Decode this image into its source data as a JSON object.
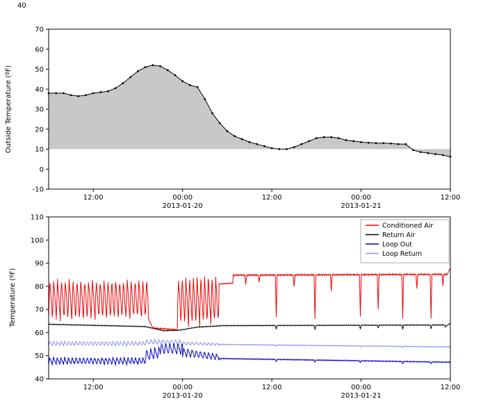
{
  "figure": {
    "background": "#ffffff",
    "stray_top_left_label": "40"
  },
  "chart_data": [
    {
      "name": "outside-temperature",
      "type": "area",
      "title": "",
      "xlabel": "",
      "ylabel": "Outside Temperature (ºF)",
      "ylim": [
        -10,
        70
      ],
      "yticks": [
        -10,
        0,
        10,
        20,
        30,
        40,
        50,
        60,
        70
      ],
      "xlim": [
        0,
        54
      ],
      "xticks": [
        {
          "pos": 6,
          "label": "12:00",
          "date": ""
        },
        {
          "pos": 18,
          "label": "00:00",
          "date": "2013-01-20"
        },
        {
          "pos": 30,
          "label": "12:00",
          "date": ""
        },
        {
          "pos": 42,
          "label": "00:00",
          "date": "2013-01-21"
        },
        {
          "pos": 54,
          "label": "12:00",
          "date": ""
        }
      ],
      "grid": false,
      "baseline": 10,
      "fill_color": "#c8c8c8",
      "line_color": "#000000",
      "marker": "dot",
      "x": [
        0,
        1,
        2,
        3,
        4,
        5,
        6,
        7,
        8,
        9,
        10,
        11,
        12,
        13,
        14,
        15,
        16,
        17,
        18,
        19,
        20,
        21,
        22,
        23,
        24,
        25,
        26,
        27,
        28,
        29,
        30,
        31,
        32,
        33,
        34,
        35,
        36,
        37,
        38,
        39,
        40,
        41,
        42,
        43,
        44,
        45,
        46,
        47,
        48,
        49,
        50,
        51,
        52,
        53,
        54
      ],
      "y": [
        38,
        38,
        38,
        37,
        36.5,
        37,
        38,
        38.5,
        39,
        40.5,
        43,
        46,
        49,
        51,
        52,
        51.5,
        49.5,
        47,
        44,
        42,
        41,
        35,
        28,
        23,
        19,
        16.5,
        15,
        13.5,
        12.5,
        11.5,
        10.5,
        10,
        10,
        11,
        12.5,
        14,
        15.5,
        16,
        16,
        15.5,
        14.5,
        14,
        13.5,
        13.2,
        13,
        13,
        12.8,
        12.5,
        12.5,
        9.5,
        8.5,
        8,
        7.5,
        7,
        6.2
      ]
    },
    {
      "name": "hvac-temperatures",
      "type": "line",
      "title": "",
      "xlabel": "",
      "ylabel": "Temperature (ºF)",
      "ylim": [
        40,
        110
      ],
      "yticks": [
        40,
        50,
        60,
        70,
        80,
        90,
        100,
        110
      ],
      "xlim": [
        0,
        54
      ],
      "xticks": [
        {
          "pos": 6,
          "label": "12:00",
          "date": ""
        },
        {
          "pos": 18,
          "label": "00:00",
          "date": "2013-01-20"
        },
        {
          "pos": 30,
          "label": "12:00",
          "date": ""
        },
        {
          "pos": 42,
          "label": "00:00",
          "date": "2013-01-21"
        },
        {
          "pos": 54,
          "label": "12:00",
          "date": ""
        }
      ],
      "grid": false,
      "legend": {
        "position": "top-right"
      },
      "series": [
        {
          "name": "Conditioned Air",
          "color": "#ee0000",
          "segments": [
            {
              "type": "osc",
              "t0": 0,
              "t1": 13.4,
              "period": 0.52,
              "lo": 66,
              "hi": 83,
              "noise": 1.2
            },
            {
              "type": "ramp",
              "t0": 13.4,
              "t1": 14.0,
              "v0": 66,
              "v1": 62,
              "noise": 0.3
            },
            {
              "type": "ramp",
              "t0": 14.0,
              "t1": 17.3,
              "v0": 62,
              "v1": 61.2,
              "noise": 0.4
            },
            {
              "type": "osc",
              "t0": 17.3,
              "t1": 22.9,
              "period": 0.5,
              "lo": 64,
              "hi": 84,
              "noise": 1.5
            },
            {
              "type": "ramp",
              "t0": 22.9,
              "t1": 24.8,
              "v0": 81,
              "v1": 81.4,
              "noise": 0.3
            },
            {
              "type": "spiky",
              "t0": 24.8,
              "t1": 53.6,
              "v0": 84.8,
              "v1": 85.2,
              "noise": 0.5,
              "spikes": [
                [
                  26.5,
                  4
                ],
                [
                  28.3,
                  3
                ],
                [
                  30.6,
                  18
                ],
                [
                  33,
                  5
                ],
                [
                  35.8,
                  19
                ],
                [
                  38,
                  7
                ],
                [
                  41.9,
                  18
                ],
                [
                  44.3,
                  15
                ],
                [
                  47.6,
                  19
                ],
                [
                  49.5,
                  6
                ],
                [
                  51.4,
                  19
                ],
                [
                  53,
                  5
                ]
              ]
            },
            {
              "type": "ramp",
              "t0": 53.6,
              "t1": 54,
              "v0": 85.2,
              "v1": 88,
              "noise": 0.2
            }
          ]
        },
        {
          "name": "Return Air",
          "color": "#000000",
          "segments": [
            {
              "type": "ramp",
              "t0": 0,
              "t1": 13,
              "v0": 63.6,
              "v1": 62.6,
              "noise": 0.25
            },
            {
              "type": "ramp",
              "t0": 13,
              "t1": 15.5,
              "v0": 62.6,
              "v1": 60.8,
              "noise": 0.2
            },
            {
              "type": "ramp",
              "t0": 15.5,
              "t1": 17.5,
              "v0": 60.8,
              "v1": 61.0,
              "noise": 0.2
            },
            {
              "type": "ramp",
              "t0": 17.5,
              "t1": 20,
              "v0": 61.0,
              "v1": 62.4,
              "noise": 0.2
            },
            {
              "type": "ramp",
              "t0": 20,
              "t1": 23,
              "v0": 62.4,
              "v1": 62.9,
              "noise": 0.25
            },
            {
              "type": "spiky",
              "t0": 23,
              "t1": 53.3,
              "v0": 63.0,
              "v1": 63.3,
              "noise": 0.25,
              "spikes": [
                [
                  30.6,
                  1.6
                ],
                [
                  35.8,
                  1.8
                ],
                [
                  41.9,
                  1.6
                ],
                [
                  44.3,
                  1.2
                ],
                [
                  47.6,
                  1.8
                ],
                [
                  51.4,
                  1.6
                ]
              ]
            },
            {
              "type": "ramp",
              "t0": 53.3,
              "t1": 54,
              "v0": 62.5,
              "v1": 64.0,
              "noise": 0.2
            }
          ]
        },
        {
          "name": "Loop Out",
          "color": "#0000cc",
          "segments": [
            {
              "type": "osc",
              "t0": 0,
              "t1": 13,
              "period": 0.5,
              "lo": 46.3,
              "hi": 49.2,
              "noise": 0.5
            },
            {
              "type": "osc",
              "t0": 13,
              "t1": 15,
              "period": 0.55,
              "lo": 47.5,
              "hi": 52.5,
              "lo2": 49,
              "hi2": 54,
              "noise": 0.5
            },
            {
              "type": "osc",
              "t0": 15,
              "t1": 18,
              "period": 0.55,
              "lo": 50.5,
              "hi": 55.5,
              "noise": 0.5
            },
            {
              "type": "osc",
              "t0": 18,
              "t1": 23,
              "period": 0.55,
              "lo": 49.5,
              "hi": 53.5,
              "lo2": 48,
              "hi2": 50.5,
              "noise": 0.4
            },
            {
              "type": "spiky",
              "t0": 23,
              "t1": 54,
              "v0": 48.8,
              "v1": 47.2,
              "noise": 0.3,
              "spikes": [
                [
                  30.6,
                  1.0
                ],
                [
                  35.8,
                  1.0
                ],
                [
                  41.9,
                  0.8
                ],
                [
                  47.6,
                  1.0
                ],
                [
                  51.4,
                  0.8
                ]
              ]
            }
          ]
        },
        {
          "name": "Loop Return",
          "color": "#8899ee",
          "segments": [
            {
              "type": "osc",
              "t0": 0,
              "t1": 13,
              "period": 0.5,
              "lo": 54.4,
              "hi": 56.2,
              "noise": 0.3
            },
            {
              "type": "osc",
              "t0": 13,
              "t1": 18,
              "period": 0.55,
              "lo": 54.8,
              "hi": 57.0,
              "noise": 0.4
            },
            {
              "type": "osc",
              "t0": 18,
              "t1": 23,
              "period": 0.55,
              "lo": 54.6,
              "hi": 56.2,
              "lo2": 54.4,
              "hi2": 55.4,
              "noise": 0.3
            },
            {
              "type": "spiky",
              "t0": 23,
              "t1": 54,
              "v0": 54.9,
              "v1": 53.8,
              "noise": 0.25,
              "spikes": [
                [
                  30.6,
                  0.6
                ],
                [
                  41.9,
                  0.5
                ],
                [
                  47.6,
                  0.6
                ]
              ]
            }
          ]
        }
      ]
    }
  ]
}
